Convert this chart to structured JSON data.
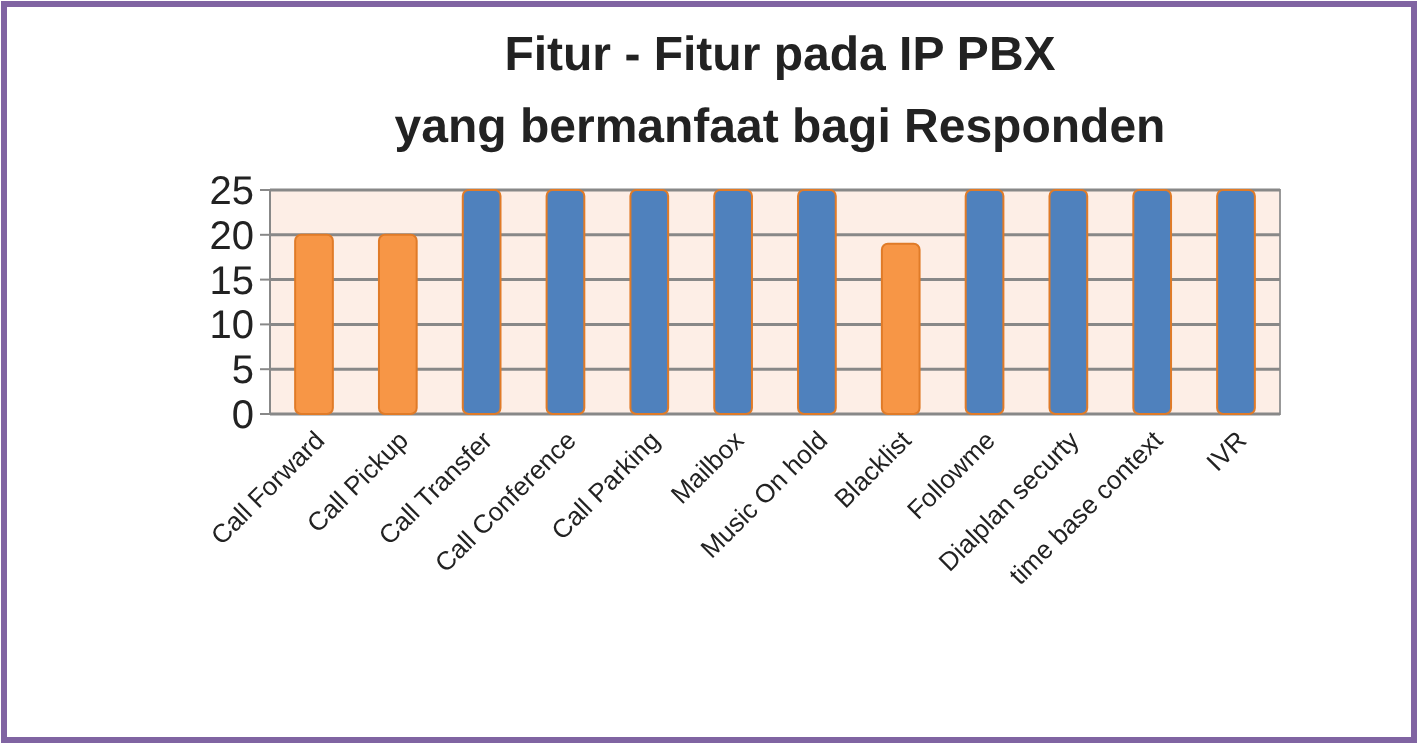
{
  "chart_data": {
    "type": "bar",
    "title": "Fitur - Fitur pada IP PBX yang bermanfaat bagi Responden",
    "categories": [
      "Call Forward",
      "Call Pickup",
      "Call Transfer",
      "Call Conference",
      "Call Parking",
      "Mailbox",
      "Music On hold",
      "Blacklist",
      "Followme",
      "Dialplan securty",
      "time base context",
      "IVR"
    ],
    "values": [
      20,
      20,
      25,
      25,
      25,
      25,
      25,
      19,
      25,
      25,
      25,
      25
    ],
    "colors": [
      "#f79646",
      "#f79646",
      "#4f81bd",
      "#4f81bd",
      "#4f81bd",
      "#4f81bd",
      "#4f81bd",
      "#f79646",
      "#4f81bd",
      "#4f81bd",
      "#4f81bd",
      "#4f81bd"
    ],
    "ylim": [
      0,
      25
    ],
    "yticks": [
      0,
      5,
      10,
      15,
      20,
      25
    ],
    "grid": "y"
  }
}
